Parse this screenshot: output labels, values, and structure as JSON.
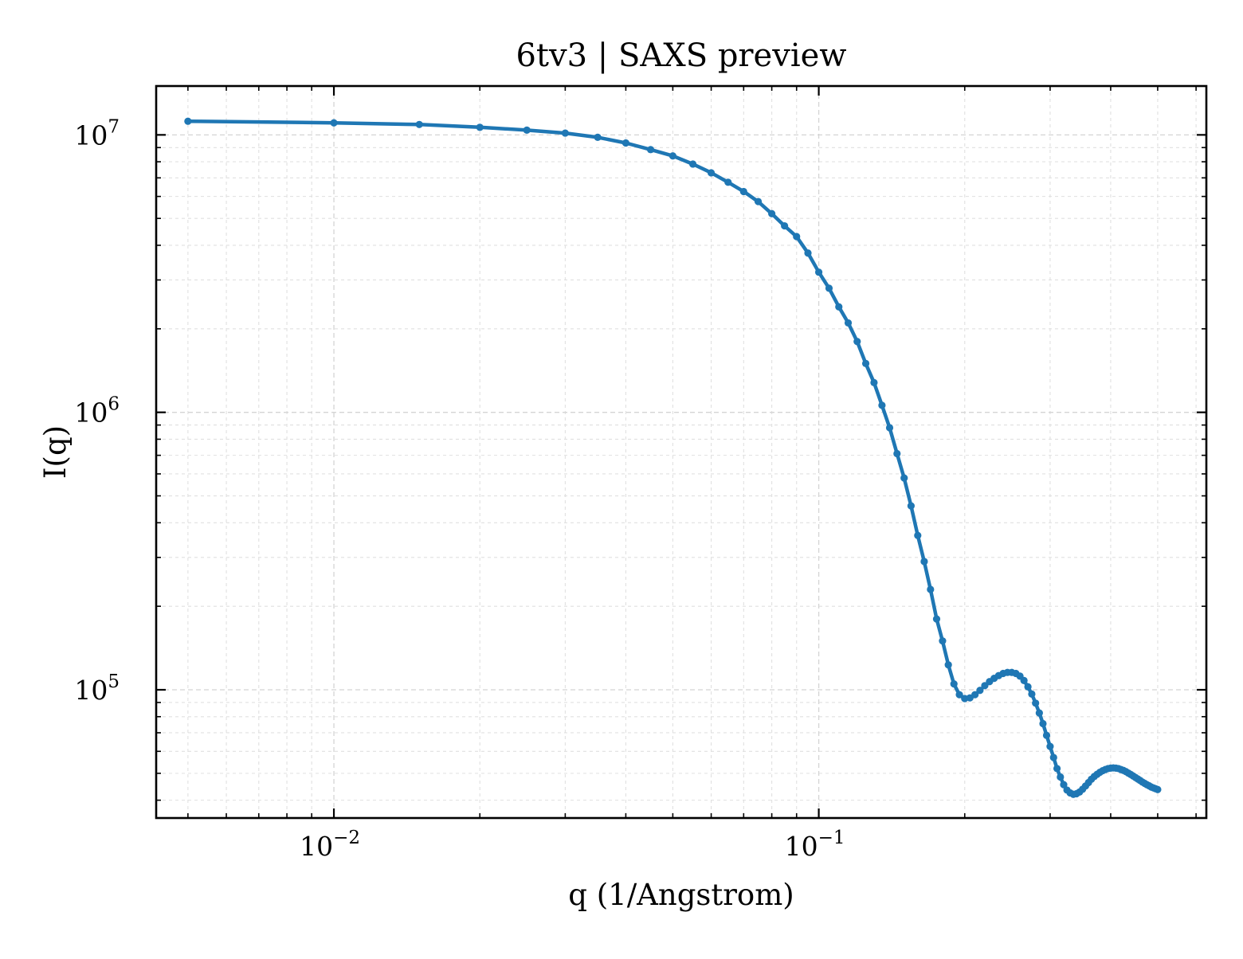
{
  "chart_data": {
    "type": "line",
    "title": "6tv3 | SAXS preview",
    "xlabel": "q (1/Angstrom)",
    "ylabel": "I(q)",
    "xscale": "log",
    "yscale": "log",
    "xlim": [
      0.0043,
      0.63
    ],
    "ylim": [
      34500,
      15000000
    ],
    "grid": true,
    "legend": "none",
    "line_color": "#1f77b4",
    "x_ticks": [
      {
        "value": 0.01,
        "base": "10",
        "exp": "−2"
      },
      {
        "value": 0.1,
        "base": "10",
        "exp": "−1"
      }
    ],
    "y_ticks": [
      {
        "value": 100000,
        "base": "10",
        "exp": "5"
      },
      {
        "value": 1000000,
        "base": "10",
        "exp": "6"
      },
      {
        "value": 10000000,
        "base": "10",
        "exp": "7"
      }
    ],
    "series": [
      {
        "x": [
          0.005,
          0.01,
          0.015,
          0.02,
          0.025,
          0.03,
          0.035,
          0.04,
          0.045,
          0.05,
          0.055,
          0.06,
          0.065,
          0.07,
          0.075,
          0.08,
          0.085,
          0.09,
          0.095,
          0.1,
          0.105,
          0.11,
          0.115,
          0.12,
          0.125,
          0.13,
          0.135,
          0.14,
          0.145,
          0.15,
          0.155,
          0.16,
          0.165,
          0.17,
          0.175,
          0.18,
          0.185,
          0.19,
          0.195,
          0.2,
          0.205,
          0.21,
          0.215,
          0.22,
          0.225,
          0.23,
          0.235,
          0.24,
          0.245,
          0.25,
          0.255,
          0.26,
          0.265,
          0.27,
          0.275,
          0.28,
          0.285,
          0.29,
          0.295,
          0.3,
          0.305,
          0.31,
          0.315,
          0.32,
          0.325,
          0.33,
          0.335,
          0.34,
          0.345,
          0.35,
          0.355,
          0.36,
          0.365,
          0.37,
          0.375,
          0.38,
          0.385,
          0.39,
          0.395,
          0.4,
          0.405,
          0.41,
          0.415,
          0.42,
          0.425,
          0.43,
          0.435,
          0.44,
          0.445,
          0.45,
          0.455,
          0.46,
          0.465,
          0.47,
          0.475,
          0.48,
          0.485,
          0.49,
          0.495,
          0.5
        ],
        "y": [
          11200000,
          11050000,
          10900000,
          10650000,
          10400000,
          10150000,
          9800000,
          9350000,
          8850000,
          8400000,
          7850000,
          7300000,
          6750000,
          6250000,
          5750000,
          5200000,
          4700000,
          4300000,
          3750000,
          3200000,
          2800000,
          2400000,
          2100000,
          1800000,
          1500000,
          1280000,
          1060000,
          880000,
          710000,
          580000,
          460000,
          360000,
          290000,
          230000,
          180000,
          150000,
          123000,
          105000,
          96000,
          93000,
          93500,
          96000,
          99500,
          103500,
          107000,
          110000,
          112500,
          114500,
          115500,
          115500,
          114500,
          112000,
          108000,
          102500,
          96500,
          89500,
          82500,
          75500,
          68500,
          62500,
          57000,
          52000,
          48500,
          45500,
          43500,
          42500,
          42000,
          42200,
          42800,
          43800,
          45000,
          46300,
          47600,
          48700,
          49600,
          50400,
          51100,
          51600,
          52000,
          52200,
          52300,
          52200,
          52000,
          51600,
          51200,
          50700,
          50100,
          49500,
          48900,
          48300,
          47700,
          47100,
          46500,
          46000,
          45500,
          45100,
          44600,
          44300,
          44000,
          43700
        ]
      }
    ]
  }
}
